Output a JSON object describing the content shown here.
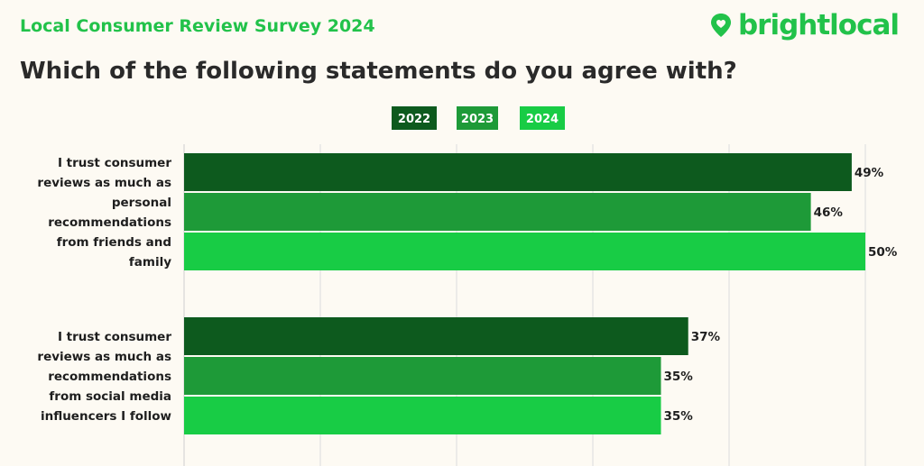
{
  "header": {
    "survey_title": "Local Consumer Review Survey 2024",
    "brand": "brightlocal",
    "question": "Which of the following statements do you agree with?"
  },
  "colors": {
    "brand_green": "#22c24a",
    "series_2022": "#0d5a1e",
    "series_2023": "#1e9a38",
    "series_2024": "#18cc45",
    "background": "#fdfaf3"
  },
  "chart_data": {
    "type": "bar",
    "orientation": "horizontal",
    "title": "Which of the following statements do you agree with?",
    "categories": [
      [
        "I trust consumer",
        "reviews as much as",
        "personal",
        "recommendations",
        "from friends and",
        "family"
      ],
      [
        "I trust consumer",
        "reviews as much as",
        "recommendations",
        "from social media",
        "influencers I follow"
      ]
    ],
    "series": [
      {
        "name": "2022",
        "values": [
          49,
          37
        ],
        "labels": [
          "49%",
          "37%"
        ]
      },
      {
        "name": "2023",
        "values": [
          46,
          35
        ],
        "labels": [
          "46%",
          "35%"
        ]
      },
      {
        "name": "2024",
        "values": [
          50,
          35
        ],
        "labels": [
          "50%",
          "35%"
        ]
      }
    ],
    "xlim": [
      0,
      50
    ],
    "unit": "%",
    "grid": true,
    "legend_position": "top-center"
  }
}
